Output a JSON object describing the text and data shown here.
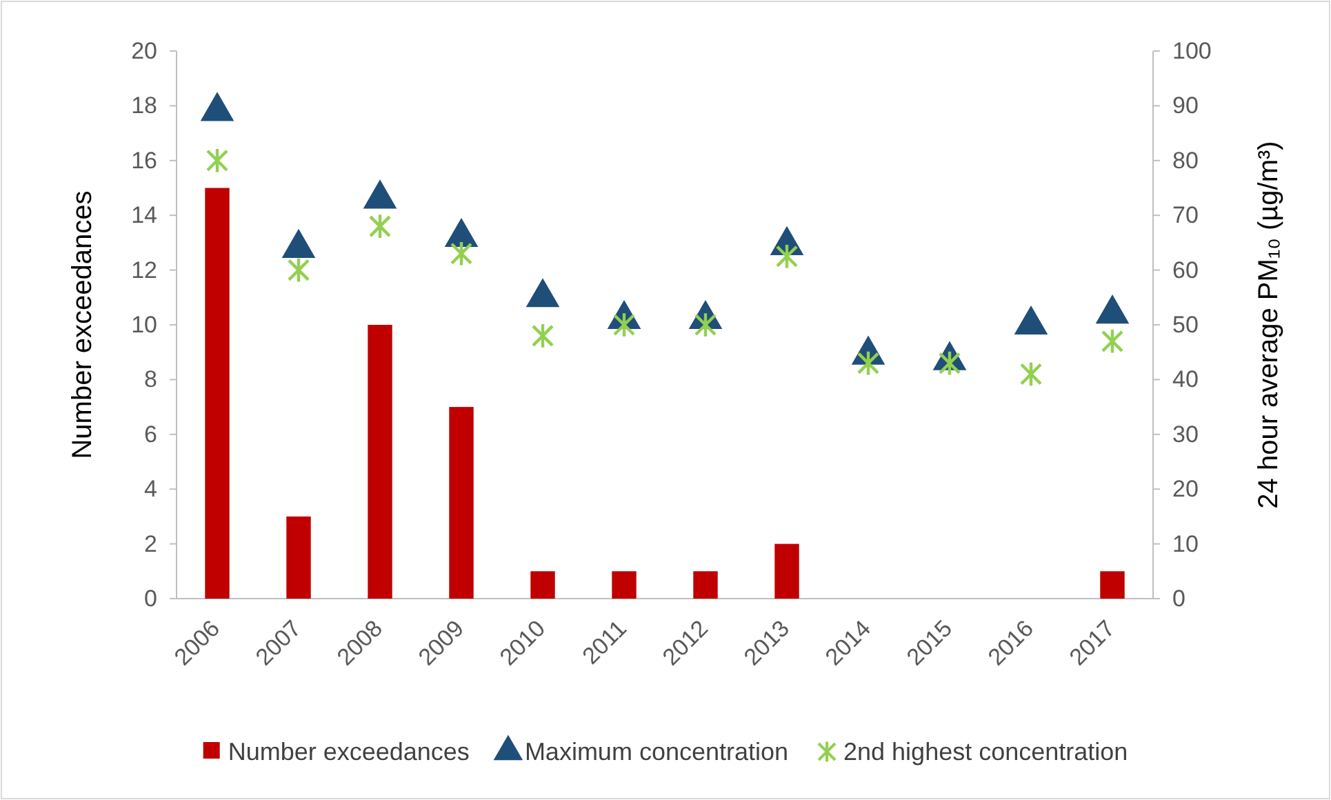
{
  "chart_data": {
    "type": "bar",
    "categories": [
      "2006",
      "2007",
      "2008",
      "2009",
      "2010",
      "2011",
      "2012",
      "2013",
      "2014",
      "2015",
      "2016",
      "2017"
    ],
    "ylabel": "Number exceedances",
    "y2label": "24 hour average PM₁₀ (µg/m³)",
    "ylim": [
      0,
      20
    ],
    "yticks": [
      0,
      2,
      4,
      6,
      8,
      10,
      12,
      14,
      16,
      18,
      20
    ],
    "y2lim": [
      0,
      100
    ],
    "y2ticks": [
      0,
      10,
      20,
      30,
      40,
      50,
      60,
      70,
      80,
      90,
      100
    ],
    "grid": false,
    "legend": "bottom",
    "series": [
      {
        "name": "Number exceedances",
        "type": "bar",
        "color": "#c00000",
        "values": [
          15,
          3,
          10,
          7,
          1,
          1,
          1,
          2,
          0,
          0,
          0,
          1
        ]
      },
      {
        "name": "Maximum concentration",
        "type": "scatter",
        "axis": "y2",
        "marker": "triangle",
        "color": "#1f4e79",
        "values": [
          89,
          64,
          73,
          66,
          55,
          51,
          51,
          64.5,
          44.5,
          43.5,
          50,
          52
        ]
      },
      {
        "name": "2nd highest concentration",
        "type": "scatter",
        "axis": "y2",
        "marker": "cross",
        "color": "#92d050",
        "values": [
          80,
          60,
          68,
          63,
          48,
          50,
          50,
          62.5,
          43,
          43,
          41,
          47
        ]
      }
    ]
  }
}
